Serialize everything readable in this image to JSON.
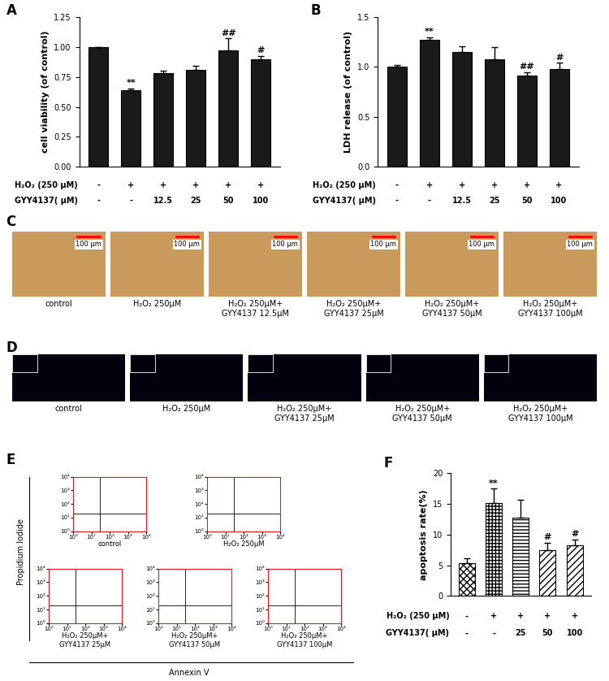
{
  "chart_data": [
    {
      "panel": "A",
      "type": "bar",
      "ylabel": "cell viability (of control)",
      "categories": [
        null,
        null,
        null,
        null,
        null,
        null
      ],
      "values": [
        1.0,
        0.64,
        0.78,
        0.81,
        0.97,
        0.9
      ],
      "errors": [
        0.0,
        0.015,
        0.02,
        0.03,
        0.1,
        0.025
      ],
      "significance": [
        null,
        "**",
        null,
        null,
        "##",
        "#"
      ],
      "color": "#1a1a1a",
      "ylim": [
        0,
        1.25
      ],
      "yticks": [
        {
          "value": 0,
          "label": "0.00"
        },
        {
          "value": 0.25,
          "label": "0.25"
        },
        {
          "value": 0.5,
          "label": "0.50"
        },
        {
          "value": 0.75,
          "label": "0.75"
        },
        {
          "value": 1.0,
          "label": "1.00"
        },
        {
          "value": 1.25,
          "label": "1.25"
        }
      ],
      "treatments": [
        {
          "label": "H₂O₂ (250 μM)",
          "values": [
            "-",
            "+",
            "+",
            "+",
            "+",
            "+"
          ]
        },
        {
          "label": "GYY4137( μM)",
          "values": [
            "-",
            "-",
            "12.5",
            "25",
            "50",
            "100"
          ]
        }
      ]
    },
    {
      "panel": "B",
      "type": "bar",
      "ylabel": "LDH release (of control)",
      "categories": [
        null,
        null,
        null,
        null,
        null,
        null
      ],
      "values": [
        1.0,
        1.27,
        1.15,
        1.08,
        0.91,
        0.98
      ],
      "errors": [
        0.02,
        0.03,
        0.06,
        0.12,
        0.04,
        0.06
      ],
      "significance": [
        null,
        "**",
        null,
        null,
        "##",
        "#"
      ],
      "color": "#1a1a1a",
      "ylim": [
        0,
        1.5
      ],
      "yticks": [
        {
          "value": 0,
          "label": "0.0"
        },
        {
          "value": 0.5,
          "label": "0.5"
        },
        {
          "value": 1.0,
          "label": "1.0"
        },
        {
          "value": 1.5,
          "label": "1.5"
        }
      ],
      "treatments": [
        {
          "label": "H₂O₂ (250 μM)",
          "values": [
            "-",
            "+",
            "+",
            "+",
            "+",
            "+"
          ]
        },
        {
          "label": "GYY4137( μM)",
          "values": [
            "-",
            "-",
            "12.5",
            "25",
            "50",
            "100"
          ]
        }
      ]
    },
    {
      "panel": "C",
      "type": "image",
      "color": "#c99a5b",
      "images": [
        {
          "caption": "control",
          "scale_bar": "100 μm"
        },
        {
          "caption": "H₂O₂ 250μM",
          "scale_bar": "100 μm"
        },
        {
          "caption": "H₂O₂ 250μM+\nGYY4137 12.5μM",
          "scale_bar": "100 μm"
        },
        {
          "caption": "H₂O₂ 250μM+\nGYY4137 25μM",
          "scale_bar": "100 μm"
        },
        {
          "caption": "H₂O₂ 250μM+\nGYY4137 50μM",
          "scale_bar": "100 μm"
        },
        {
          "caption": "H₂O₂ 250μM+\nGYY4137 100μM",
          "scale_bar": "100 μm"
        }
      ]
    },
    {
      "panel": "D",
      "type": "image",
      "color": "#02020e",
      "images": [
        {
          "caption": "control"
        },
        {
          "caption": "H₂O₂ 250μM"
        },
        {
          "caption": "H₂O₂ 250μM+\nGYY4137 25μM"
        },
        {
          "caption": "H₂O₂ 250μM+\nGYY4137 50μM"
        },
        {
          "caption": "H₂O₂ 250μM+\nGYY4137 100μM"
        }
      ]
    },
    {
      "panel": "E",
      "type": "scatter",
      "xlabel": "Annexin V",
      "ylabel": "Propidium Iodide",
      "log": true,
      "color": "#e8141b",
      "xlim": [
        1,
        10000
      ],
      "ylim": [
        1,
        10000
      ],
      "xticks": [
        {
          "value": 1,
          "label": "10⁰"
        },
        {
          "value": 10,
          "label": "10¹"
        },
        {
          "value": 100,
          "label": "10²"
        },
        {
          "value": 1000,
          "label": "10³"
        },
        {
          "value": 10000,
          "label": "10⁴"
        }
      ],
      "yticks": [
        {
          "value": 1,
          "label": "10⁰"
        },
        {
          "value": 10,
          "label": "10¹"
        },
        {
          "value": 100,
          "label": "10²"
        },
        {
          "value": 1000,
          "label": "10³"
        },
        {
          "value": 10000,
          "label": "10⁴"
        }
      ],
      "quadrant": {
        "x": 30,
        "y": 20
      },
      "plots": [
        {
          "caption": "control"
        },
        {
          "caption": "H₂O₂ 250μM"
        },
        {
          "caption": "H₂O₂ 250μM+\nGYY4137 25μM"
        },
        {
          "caption": "H₂O₂ 250μM+\nGYY4137 50μM"
        },
        {
          "caption": "H₂O₂ 250μM+\nGYY4137 100μM"
        }
      ]
    },
    {
      "panel": "F",
      "type": "bar",
      "ylabel": "apoptosis rate(%)",
      "categories": [
        null,
        null,
        null,
        null,
        null
      ],
      "values": [
        5.3,
        15.1,
        12.7,
        7.5,
        8.2
      ],
      "errors": [
        0.8,
        2.4,
        3.0,
        1.2,
        1.0
      ],
      "significance": [
        null,
        "**",
        null,
        "#",
        "#"
      ],
      "color": "#ffffff",
      "ylim": [
        0,
        20
      ],
      "yticks": [
        0,
        5,
        10,
        15,
        20
      ],
      "treatments": [
        {
          "label": "H₂O₂ (250 μM)",
          "values": [
            "-",
            "+",
            "+",
            "+",
            "+"
          ]
        },
        {
          "label": "GYY4137( μM)",
          "values": [
            "-",
            "-",
            "25",
            "50",
            "100"
          ]
        }
      ]
    }
  ]
}
